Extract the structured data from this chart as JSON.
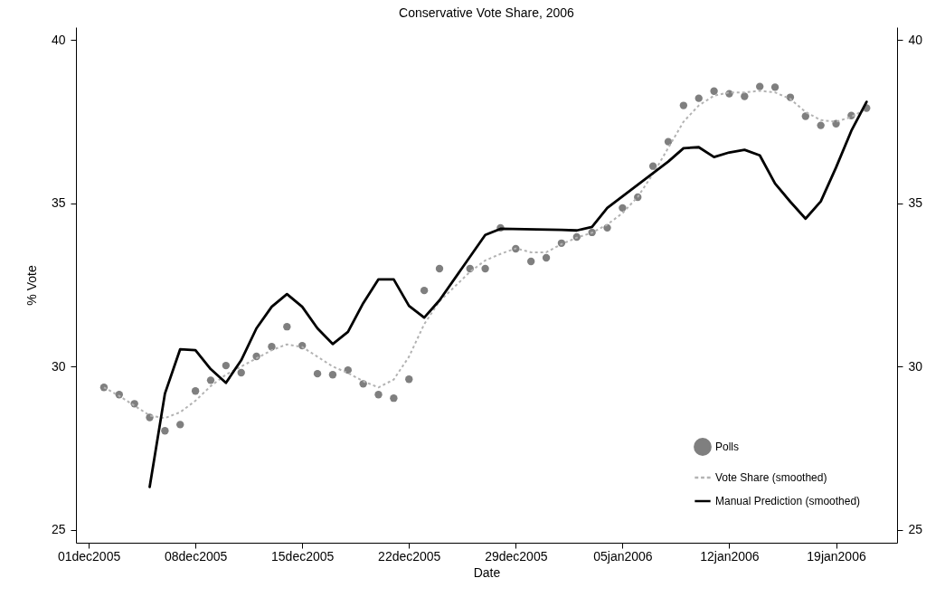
{
  "chart_data": {
    "type": "scatter",
    "title": "Conservative Vote Share, 2006",
    "xlabel": "Date",
    "ylabel": "% Vote",
    "xlim": [
      "2005-11-30T04:00",
      "2006-01-23"
    ],
    "xticks": [
      {
        "value": "2005-12-01",
        "label": "01dec2005"
      },
      {
        "value": "2005-12-08",
        "label": "08dec2005"
      },
      {
        "value": "2005-12-15",
        "label": "15dec2005"
      },
      {
        "value": "2005-12-22",
        "label": "22dec2005"
      },
      {
        "value": "2005-12-29",
        "label": "29dec2005"
      },
      {
        "value": "2006-01-05",
        "label": "05jan2006"
      },
      {
        "value": "2006-01-12",
        "label": "12jan2006"
      },
      {
        "value": "2006-01-19",
        "label": "19jan2006"
      }
    ],
    "ylim": [
      24.6,
      40.4
    ],
    "yticks": [
      25,
      30,
      35,
      40
    ],
    "y2lim": [
      24.6,
      40.4
    ],
    "y2ticks": [
      25,
      30,
      35,
      40
    ],
    "grid": false,
    "legend": "bottom right",
    "series": [
      {
        "name": "Polls",
        "type": "scatter",
        "marker": "circle",
        "color": "#7f7f7f",
        "x": [
          "2005-12-02",
          "2005-12-03",
          "2005-12-04",
          "2005-12-05",
          "2005-12-06",
          "2005-12-07",
          "2005-12-08",
          "2005-12-09",
          "2005-12-10",
          "2005-12-11",
          "2005-12-12",
          "2005-12-13",
          "2005-12-14",
          "2005-12-15",
          "2005-12-16",
          "2005-12-17",
          "2005-12-18",
          "2005-12-19",
          "2005-12-20",
          "2005-12-21",
          "2005-12-22",
          "2005-12-23",
          "2005-12-24",
          "2005-12-26",
          "2005-12-27",
          "2005-12-28",
          "2005-12-29",
          "2005-12-30",
          "2005-12-31",
          "2006-01-01",
          "2006-01-02",
          "2006-01-03",
          "2006-01-04",
          "2006-01-05",
          "2006-01-06",
          "2006-01-07",
          "2006-01-08",
          "2006-01-09",
          "2006-01-10",
          "2006-01-11",
          "2006-01-12",
          "2006-01-13",
          "2006-01-14",
          "2006-01-15",
          "2006-01-16",
          "2006-01-17",
          "2006-01-18",
          "2006-01-19",
          "2006-01-20",
          "2006-01-21"
        ],
        "values": [
          29.36,
          29.14,
          28.86,
          28.44,
          28.03,
          28.22,
          29.25,
          29.58,
          30.03,
          29.81,
          30.31,
          30.61,
          31.22,
          30.64,
          29.78,
          29.75,
          29.89,
          29.47,
          29.14,
          29.03,
          29.61,
          32.33,
          33.0,
          33.0,
          33.0,
          34.25,
          33.61,
          33.22,
          33.33,
          33.78,
          33.97,
          34.11,
          34.25,
          34.86,
          35.19,
          36.14,
          36.89,
          38.0,
          38.22,
          38.44,
          38.36,
          38.28,
          38.58,
          38.56,
          38.25,
          37.67,
          37.39,
          37.44,
          37.69,
          37.92
        ]
      },
      {
        "name": "Vote Share (smoothed)",
        "type": "line",
        "line_style": "dashed",
        "color": "#b3b3b3",
        "x": [
          "2005-12-02",
          "2005-12-03",
          "2005-12-04",
          "2005-12-05",
          "2005-12-06",
          "2005-12-07",
          "2005-12-08",
          "2005-12-09",
          "2005-12-10",
          "2005-12-11",
          "2005-12-12",
          "2005-12-13",
          "2005-12-14",
          "2005-12-15",
          "2005-12-16",
          "2005-12-17",
          "2005-12-18",
          "2005-12-19",
          "2005-12-20",
          "2005-12-21",
          "2005-12-22",
          "2005-12-23",
          "2005-12-24",
          "2005-12-26",
          "2005-12-27",
          "2005-12-28",
          "2005-12-29",
          "2005-12-30",
          "2005-12-31",
          "2006-01-01",
          "2006-01-02",
          "2006-01-03",
          "2006-01-04",
          "2006-01-05",
          "2006-01-06",
          "2006-01-07",
          "2006-01-08",
          "2006-01-09",
          "2006-01-10",
          "2006-01-11",
          "2006-01-12",
          "2006-01-13",
          "2006-01-14",
          "2006-01-15",
          "2006-01-16",
          "2006-01-17",
          "2006-01-18",
          "2006-01-19",
          "2006-01-20",
          "2006-01-21"
        ],
        "values": [
          29.36,
          29.1,
          28.8,
          28.5,
          28.42,
          28.6,
          28.95,
          29.4,
          29.75,
          30.0,
          30.25,
          30.5,
          30.68,
          30.6,
          30.3,
          30.0,
          29.8,
          29.55,
          29.36,
          29.6,
          30.3,
          31.3,
          32.0,
          32.9,
          33.25,
          33.45,
          33.62,
          33.5,
          33.5,
          33.75,
          33.95,
          34.1,
          34.35,
          34.7,
          35.2,
          35.9,
          36.7,
          37.5,
          38.0,
          38.3,
          38.4,
          38.4,
          38.45,
          38.4,
          38.2,
          37.8,
          37.55,
          37.5,
          37.65,
          37.9
        ]
      },
      {
        "name": "Manual Prediction (smoothed)",
        "type": "line",
        "line_style": "solid",
        "color": "#000000",
        "x": [
          "2005-12-05",
          "2005-12-06",
          "2005-12-07",
          "2005-12-08",
          "2005-12-09",
          "2005-12-10",
          "2005-12-11",
          "2005-12-12",
          "2005-12-13",
          "2005-12-14",
          "2005-12-15",
          "2005-12-16",
          "2005-12-17",
          "2005-12-18",
          "2005-12-19",
          "2005-12-20",
          "2005-12-21",
          "2005-12-22",
          "2005-12-23",
          "2005-12-24",
          "2005-12-27",
          "2005-12-28",
          "2006-01-01",
          "2006-01-02",
          "2006-01-03",
          "2006-01-04",
          "2006-01-08",
          "2006-01-09",
          "2006-01-10",
          "2006-01-11",
          "2006-01-12",
          "2006-01-13",
          "2006-01-14",
          "2006-01-15",
          "2006-01-16",
          "2006-01-17",
          "2006-01-18",
          "2006-01-19",
          "2006-01-20",
          "2006-01-21"
        ],
        "values": [
          26.31,
          29.17,
          30.53,
          30.5,
          29.92,
          29.5,
          30.19,
          31.17,
          31.83,
          32.22,
          31.83,
          31.17,
          30.69,
          31.06,
          31.94,
          32.67,
          32.67,
          31.86,
          31.5,
          32.03,
          34.03,
          34.22,
          34.19,
          34.17,
          34.28,
          34.86,
          36.28,
          36.69,
          36.72,
          36.42,
          36.56,
          36.64,
          36.47,
          35.61,
          35.05,
          34.53,
          35.06,
          36.1,
          37.22,
          38.11
        ]
      }
    ]
  }
}
